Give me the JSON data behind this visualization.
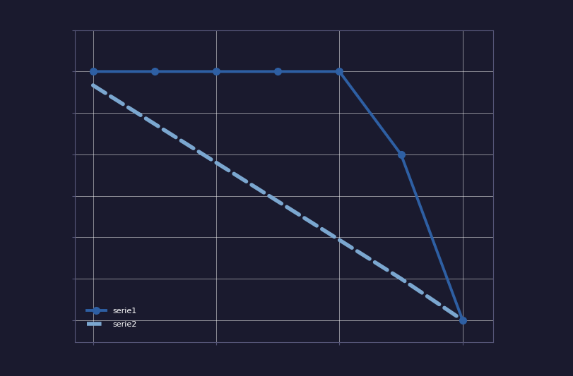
{
  "line1_x": [
    0,
    1,
    2,
    3,
    4,
    5,
    6
  ],
  "line1_y": [
    9,
    9,
    9,
    9,
    9,
    6,
    0
  ],
  "line2_x": [
    0,
    1,
    2,
    3,
    4,
    5,
    6
  ],
  "line2_y": [
    8.5,
    7.1,
    5.7,
    4.3,
    2.9,
    1.5,
    0
  ],
  "line1_color": "#2E5FA3",
  "line2_color": "#7BA7D0",
  "line1_linewidth": 2.8,
  "line2_linewidth": 4.0,
  "line1_linestyle": "-",
  "line2_linestyle": "--",
  "line1_marker": "o",
  "line1_markersize": 7,
  "line1_label": "serie1",
  "line2_label": "serie2",
  "xlim": [
    -0.3,
    6.5
  ],
  "ylim": [
    -0.8,
    10.5
  ],
  "grid_color": "#ffffff",
  "plot_bg_color": "#1a1a2e",
  "fig_bg_color": "#1a1a2e",
  "spine_color": "#555577",
  "xtick_count": 4,
  "ytick_count": 8
}
